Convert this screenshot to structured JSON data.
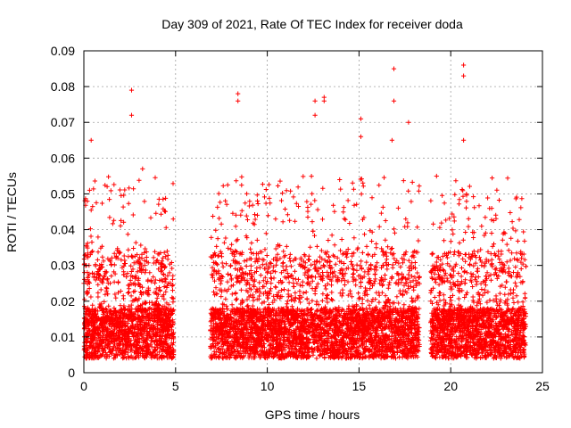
{
  "chart_data": {
    "type": "scatter",
    "title": "Day 309 of 2021, Rate Of TEC Index for receiver doda",
    "xlabel": "GPS time / hours",
    "ylabel": "ROTI / TECUs",
    "xlim": [
      0,
      25
    ],
    "ylim": [
      0,
      0.09
    ],
    "xticks": [
      0,
      5,
      10,
      15,
      20,
      25
    ],
    "yticks": [
      0,
      0.01,
      0.02,
      0.03,
      0.04,
      0.05,
      0.06,
      0.07,
      0.08,
      0.09
    ],
    "xtick_labels": [
      "0",
      "5",
      "10",
      "15",
      "20",
      "25"
    ],
    "ytick_labels": [
      "0",
      "0.01",
      "0.02",
      "0.03",
      "0.04",
      "0.05",
      "0.06",
      "0.07",
      "0.08",
      "0.09"
    ],
    "grid": true,
    "marker": "+",
    "color": "#ff0000",
    "data_intervals_hours": [
      [
        0,
        4.9
      ],
      [
        6.9,
        18.3
      ],
      [
        18.9,
        24.1
      ]
    ],
    "notable_points": [
      {
        "x": 0.4,
        "y": 0.065
      },
      {
        "x": 2.6,
        "y": 0.079
      },
      {
        "x": 2.6,
        "y": 0.072
      },
      {
        "x": 3.2,
        "y": 0.057
      },
      {
        "x": 8.4,
        "y": 0.078
      },
      {
        "x": 8.4,
        "y": 0.076
      },
      {
        "x": 12.6,
        "y": 0.076
      },
      {
        "x": 12.6,
        "y": 0.072
      },
      {
        "x": 13.1,
        "y": 0.077
      },
      {
        "x": 13.1,
        "y": 0.076
      },
      {
        "x": 15.1,
        "y": 0.071
      },
      {
        "x": 15.1,
        "y": 0.066
      },
      {
        "x": 16.9,
        "y": 0.085
      },
      {
        "x": 16.9,
        "y": 0.076
      },
      {
        "x": 16.8,
        "y": 0.065
      },
      {
        "x": 17.7,
        "y": 0.07
      },
      {
        "x": 20.7,
        "y": 0.086
      },
      {
        "x": 20.7,
        "y": 0.083
      },
      {
        "x": 20.7,
        "y": 0.065
      }
    ]
  }
}
